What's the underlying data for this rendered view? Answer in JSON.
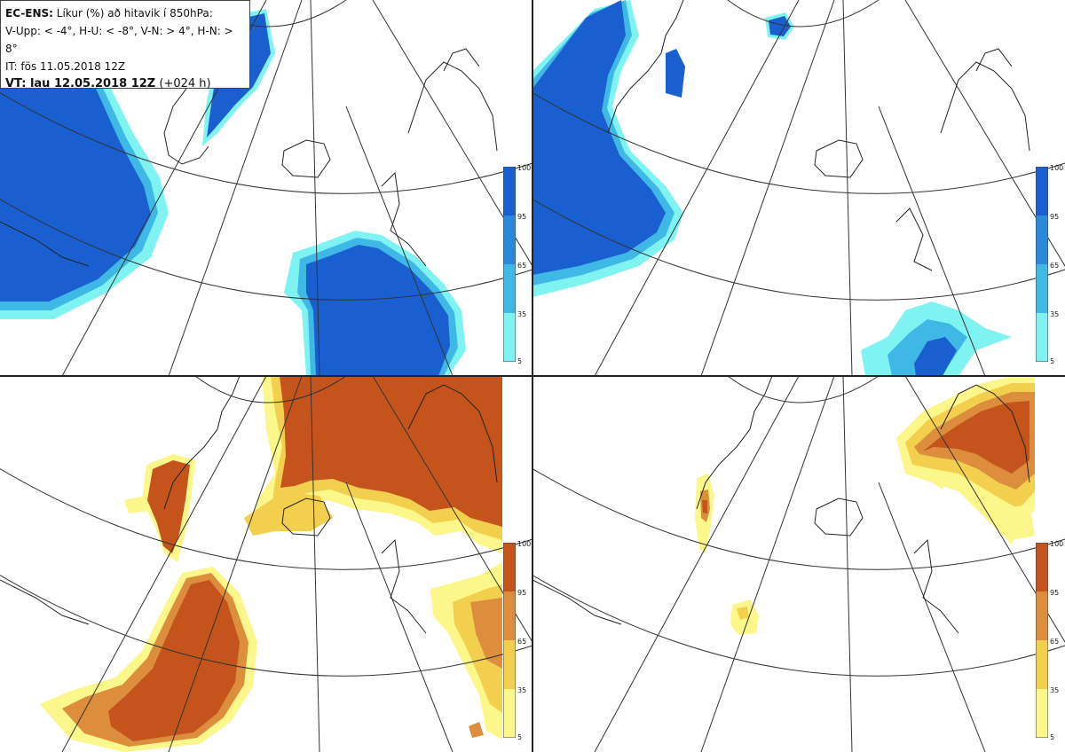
{
  "legend": {
    "line1_bold": "EC-ENS:",
    "line1_rest": " Líkur (%) að hitavik í 850hPa:",
    "line2": "V-Upp: < -4°, H-U: < -8°, V-N: > 4°, H-N: > 8°",
    "line3": "IT: fös 11.05.2018 12Z",
    "line4_bold": "VT: lau 12.05.2018 12Z",
    "line4_rest": " (+024 h)"
  },
  "colorbar": {
    "ticks": [
      "100",
      "95",
      "65",
      "35",
      "5"
    ]
  },
  "panels": [
    {
      "id": "V-Upp",
      "threshold": "< -4°",
      "colors": [
        "#7ff2f2",
        "#3fb8e6",
        "#2a88dd",
        "#1a5fd0"
      ]
    },
    {
      "id": "H-U",
      "threshold": "< -8°",
      "colors": [
        "#7ff2f2",
        "#3fb8e6",
        "#2a88dd",
        "#1a5fd0"
      ]
    },
    {
      "id": "V-N",
      "threshold": "> 4°",
      "colors": [
        "#fbf78a",
        "#f3cf4e",
        "#dc8e3c",
        "#c4541c"
      ]
    },
    {
      "id": "H-N",
      "threshold": "> 8°",
      "colors": [
        "#fbf78a",
        "#f3cf4e",
        "#dc8e3c",
        "#c4541c"
      ]
    }
  ]
}
